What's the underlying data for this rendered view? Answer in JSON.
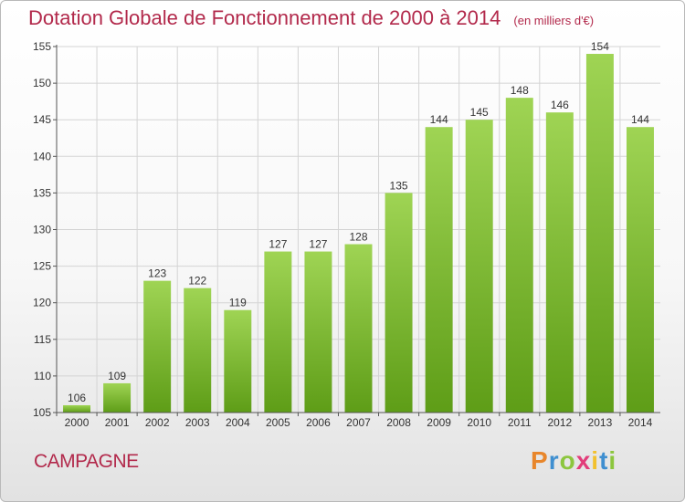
{
  "header": {
    "title": "Dotation Globale de Fonctionnement de 2000 à 2014",
    "unit": "(en milliers d'€)"
  },
  "footer": {
    "commune": "CAMPAGNE",
    "logo_text": "Proxiti"
  },
  "colors": {
    "title": "#b2294b",
    "bar_top": "#9fd454",
    "bar_bottom": "#5e9d17",
    "grid": "#d4d4d4",
    "axis": "#555555"
  },
  "chart_data": {
    "type": "bar",
    "title": "Dotation Globale de Fonctionnement de 2000 à 2014",
    "subtitle": "(en milliers d'€)",
    "categories": [
      "2000",
      "2001",
      "2002",
      "2003",
      "2004",
      "2005",
      "2006",
      "2007",
      "2008",
      "2009",
      "2010",
      "2011",
      "2012",
      "2013",
      "2014"
    ],
    "values": [
      106,
      109,
      123,
      122,
      119,
      127,
      127,
      128,
      135,
      144,
      145,
      148,
      146,
      154,
      144
    ],
    "ylim": [
      105,
      155
    ],
    "yticks": [
      105,
      110,
      115,
      120,
      125,
      130,
      135,
      140,
      145,
      150,
      155
    ],
    "grid": true,
    "data_labels": true,
    "xlabel": "",
    "ylabel": ""
  }
}
